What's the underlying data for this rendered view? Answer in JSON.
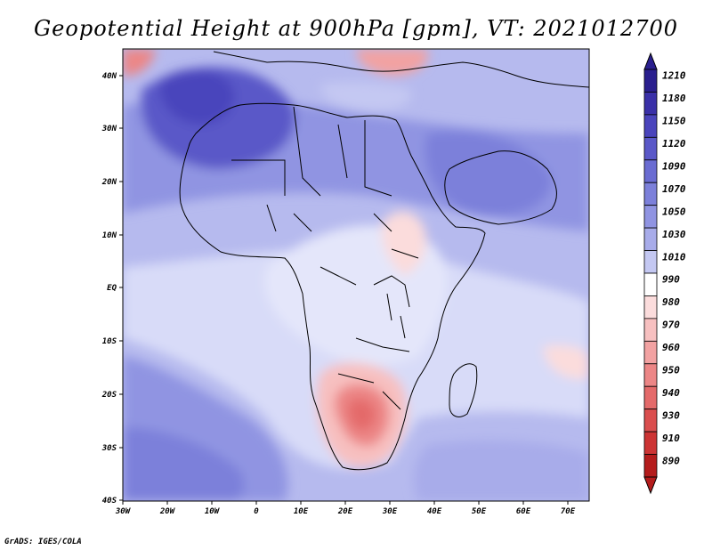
{
  "title": "Geopotential Height at 900hPa [gpm], VT: 2021012700",
  "footer": "GrADS: IGES/COLA",
  "map": {
    "lat_ticks": [
      "40N",
      "30N",
      "20N",
      "10N",
      "EQ",
      "10S",
      "20S",
      "30S",
      "40S"
    ],
    "lon_ticks": [
      "30W",
      "20W",
      "10W",
      "0",
      "10E",
      "20E",
      "30E",
      "40E",
      "50E",
      "60E",
      "70E"
    ]
  },
  "colorbar": {
    "levels": [
      "1210",
      "1180",
      "1150",
      "1120",
      "1090",
      "1070",
      "1050",
      "1030",
      "1010",
      "990",
      "980",
      "970",
      "960",
      "950",
      "940",
      "930",
      "910",
      "890"
    ],
    "colors": [
      "#2a1f8e",
      "#3a30a8",
      "#4a44bc",
      "#5a58c8",
      "#6a6cd2",
      "#7c80da",
      "#9094e2",
      "#a8acea",
      "#c4c8f2",
      "#ffffff",
      "#fbdcdc",
      "#f7c0c0",
      "#f2a2a2",
      "#ec8686",
      "#e46a6a",
      "#da4e4e",
      "#cc3434",
      "#b41c1c"
    ]
  }
}
